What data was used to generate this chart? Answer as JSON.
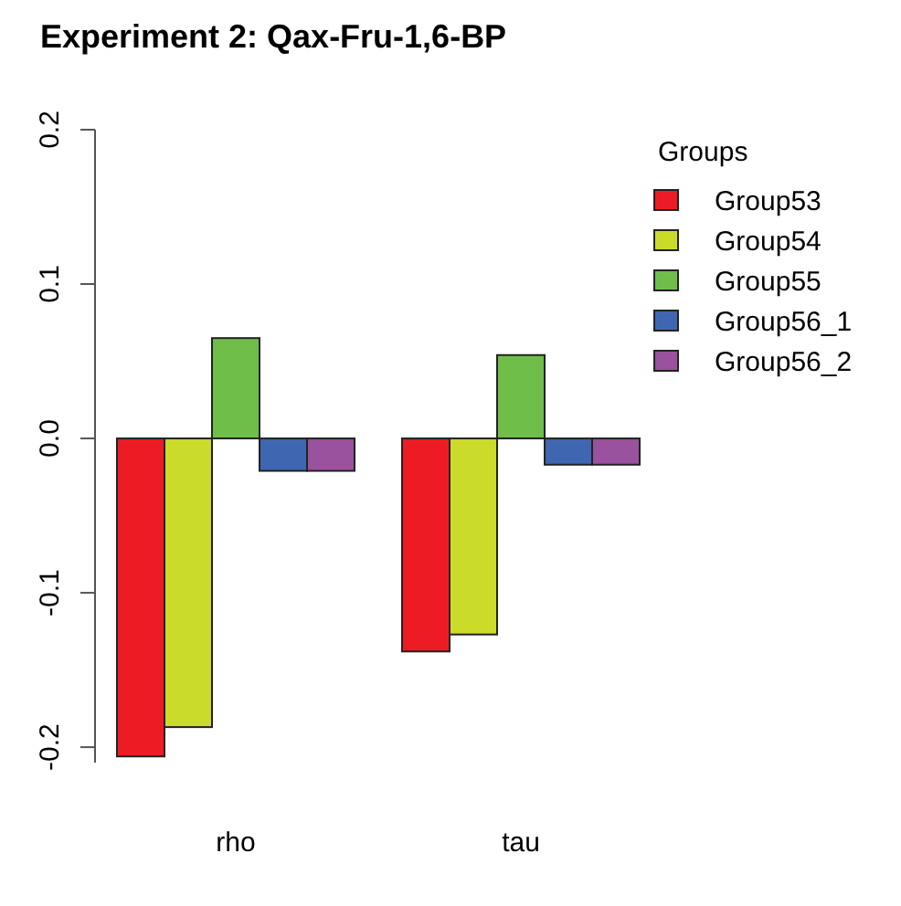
{
  "chart_data": {
    "type": "bar",
    "title": "Experiment 2: Qax-Fru-1,6-BP",
    "legend_title": "Groups",
    "categories": [
      "rho",
      "tau"
    ],
    "series": [
      {
        "name": "Group53",
        "color": "#ed1c24",
        "values": [
          -0.206,
          -0.138
        ]
      },
      {
        "name": "Group54",
        "color": "#cbdb2a",
        "values": [
          -0.187,
          -0.127
        ]
      },
      {
        "name": "Group55",
        "color": "#6fbe4a",
        "values": [
          0.065,
          0.054
        ]
      },
      {
        "name": "Group56_1",
        "color": "#3f67b1",
        "values": [
          -0.021,
          -0.017
        ]
      },
      {
        "name": "Group56_2",
        "color": "#9a519e",
        "values": [
          -0.021,
          -0.017
        ]
      }
    ],
    "ylim": [
      -0.21,
      0.2
    ],
    "yticks": [
      {
        "value": -0.2,
        "label": "-0.2"
      },
      {
        "value": -0.1,
        "label": "-0.1"
      },
      {
        "value": 0,
        "label": "0.0"
      },
      {
        "value": 0.1,
        "label": "0.1"
      },
      {
        "value": 0.2,
        "label": "0.2"
      }
    ],
    "legend": "right"
  }
}
